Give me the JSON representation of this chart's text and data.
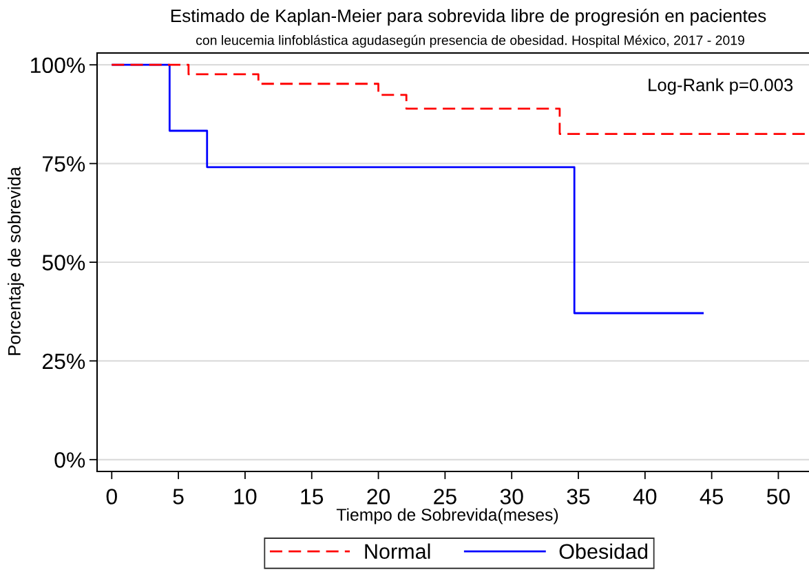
{
  "chart_data": {
    "type": "step",
    "title": "Estimado de Kaplan-Meier para sobrevida libre de progresión en pacientes",
    "subtitle": "con leucemia linfoblástica agudasegún presencia de obesidad. Hospital México, 2017 - 2019",
    "xlabel": "Tiempo de Sobrevida(meses)",
    "ylabel": "Porcentaje de sobrevida",
    "annotations": [
      "Log-Rank p=0.003"
    ],
    "series": [
      {
        "name": "Normal",
        "color": "#ff0000",
        "line_style": "dashed",
        "x": [
          0,
          5.76,
          11.0,
          20.0,
          22.1,
          33.6,
          52
        ],
        "values": [
          100,
          97.6,
          95.2,
          92.4,
          88.9,
          82.5,
          82.5
        ]
      },
      {
        "name": "Obesidad",
        "color": "#0000ff",
        "line_style": "solid",
        "x": [
          0,
          4.34,
          7.15,
          34.7,
          44.4
        ],
        "values": [
          100,
          83.3,
          74.1,
          37.1,
          37.1
        ]
      }
    ],
    "xlim": [
      -1.1,
      52.3
    ],
    "ylim": [
      -3,
      103
    ],
    "xticks": [
      0,
      5,
      10,
      15,
      20,
      25,
      30,
      35,
      40,
      45,
      50
    ],
    "yticks": [
      {
        "value": 0,
        "label": "0%"
      },
      {
        "value": 25,
        "label": "25%"
      },
      {
        "value": 50,
        "label": "50%"
      },
      {
        "value": 75,
        "label": "75%"
      },
      {
        "value": 100,
        "label": "100%"
      }
    ],
    "grid": "y",
    "legend": "bottom"
  }
}
